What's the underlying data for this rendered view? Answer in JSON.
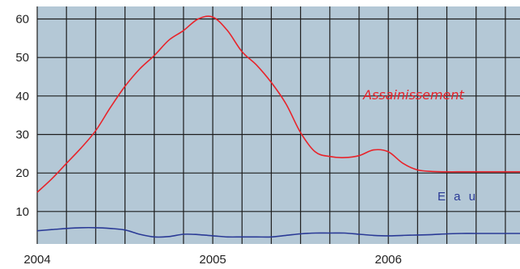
{
  "chart_data": {
    "type": "line",
    "title": "",
    "xlabel": "",
    "ylabel": "",
    "x_ticks": [
      "2004",
      "2005",
      "2006"
    ],
    "y_ticks": [
      "10",
      "20",
      "30",
      "40",
      "50",
      "60"
    ],
    "ylim": [
      0,
      65
    ],
    "grid": true,
    "legend": "none",
    "plot_background": "#b4c8d6",
    "x": [
      "2004-01",
      "2004-02",
      "2004-03",
      "2004-04",
      "2004-05",
      "2004-06",
      "2004-07",
      "2004-08",
      "2004-09",
      "2004-10",
      "2004-11",
      "2004-12",
      "2005-01",
      "2005-02",
      "2005-03",
      "2005-04",
      "2005-05",
      "2005-06",
      "2005-07",
      "2005-08",
      "2005-09",
      "2005-10",
      "2005-11",
      "2005-12",
      "2006-01",
      "2006-02",
      "2006-03",
      "2006-04",
      "2006-05",
      "2006-06",
      "2006-07",
      "2006-08",
      "2006-09",
      "2006-10"
    ],
    "series": [
      {
        "name": "Assainissement",
        "color": "#e8232a",
        "values": [
          15,
          18.5,
          22.5,
          26.5,
          31,
          37,
          42.5,
          47,
          50.5,
          54.5,
          57,
          60,
          60.5,
          57,
          51.5,
          48,
          43.5,
          38,
          30.5,
          25.5,
          24.3,
          24,
          24.5,
          26,
          25.5,
          22.5,
          20.8,
          20.4,
          20.3,
          20.3,
          20.3,
          20.3,
          20.3,
          20.3
        ]
      },
      {
        "name": "Eau",
        "color": "#2a3a96",
        "values": [
          5,
          5.3,
          5.6,
          5.8,
          5.8,
          5.6,
          5.2,
          4.1,
          3.4,
          3.5,
          4.1,
          4.0,
          3.7,
          3.4,
          3.4,
          3.4,
          3.4,
          3.8,
          4.2,
          4.4,
          4.4,
          4.4,
          4.1,
          3.8,
          3.7,
          3.8,
          3.9,
          4.0,
          4.2,
          4.3,
          4.3,
          4.3,
          4.3,
          4.3
        ]
      }
    ],
    "annotations": {
      "assainissement_label": "Assainissement",
      "eau_label": "E a u"
    }
  }
}
